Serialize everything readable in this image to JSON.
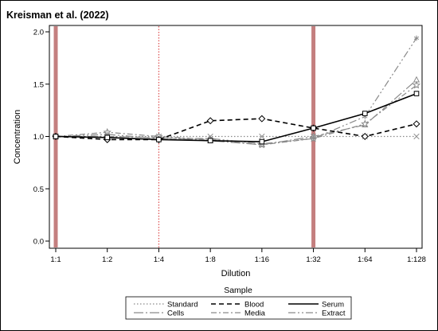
{
  "chart_data": {
    "type": "line",
    "title": "Kreisman et al. (2022)",
    "xlabel": "Dilution",
    "ylabel": "Concentration",
    "categories": [
      "1:1",
      "1:2",
      "1:4",
      "1:8",
      "1:16",
      "1:32",
      "1:64",
      "1:128"
    ],
    "ylim": [
      0,
      2.0
    ],
    "yticks": [
      0.0,
      0.5,
      1.0,
      1.5,
      2.0
    ],
    "ytick_labels": [
      "0.0",
      "0.5",
      "1.0",
      "1.5",
      "2.0"
    ],
    "grid": false,
    "legend_title": "Sample",
    "legend_position": "bottom",
    "series": [
      {
        "name": "Standard",
        "values": [
          1.0,
          1.0,
          1.0,
          1.0,
          1.0,
          1.0,
          1.0,
          1.0
        ],
        "marker": "x",
        "color": "#8a8a8a",
        "dash": "1.5 2.5",
        "width": 1.2
      },
      {
        "name": "Blood",
        "values": [
          1.0,
          0.97,
          0.97,
          1.15,
          1.17,
          1.08,
          1.0,
          1.12
        ],
        "marker": "diamond",
        "color": "#000000",
        "dash": "6 4",
        "width": 1.6
      },
      {
        "name": "Serum",
        "values": [
          1.0,
          0.99,
          0.97,
          0.96,
          0.95,
          1.08,
          1.22,
          1.41
        ],
        "marker": "square",
        "color": "#000000",
        "dash": "",
        "width": 1.6
      },
      {
        "name": "Cells",
        "values": [
          1.0,
          1.0,
          0.99,
          0.96,
          0.92,
          1.0,
          1.11,
          1.54
        ],
        "marker": "triangle",
        "color": "#8a8a8a",
        "dash": "12 3 2 3",
        "width": 1.2
      },
      {
        "name": "Media",
        "values": [
          1.0,
          1.04,
          1.0,
          0.97,
          0.92,
          0.98,
          1.12,
          1.49
        ],
        "marker": "star",
        "color": "#8a8a8a",
        "dash": "7 3 2 3",
        "width": 1.2
      },
      {
        "name": "Extract",
        "values": [
          1.0,
          1.02,
          0.98,
          0.98,
          0.93,
          0.98,
          1.19,
          1.94
        ],
        "marker": "asterisk",
        "color": "#8a8a8a",
        "dash": "9 3 2 3 2 3",
        "width": 1.2
      }
    ],
    "reference_lines": [
      {
        "category": "1:1",
        "style": "solid",
        "color": "#c47f7f"
      },
      {
        "category": "1:4",
        "style": "dotted",
        "color": "#e05a5a"
      },
      {
        "category": "1:32",
        "style": "solid",
        "color": "#c47f7f"
      }
    ]
  }
}
